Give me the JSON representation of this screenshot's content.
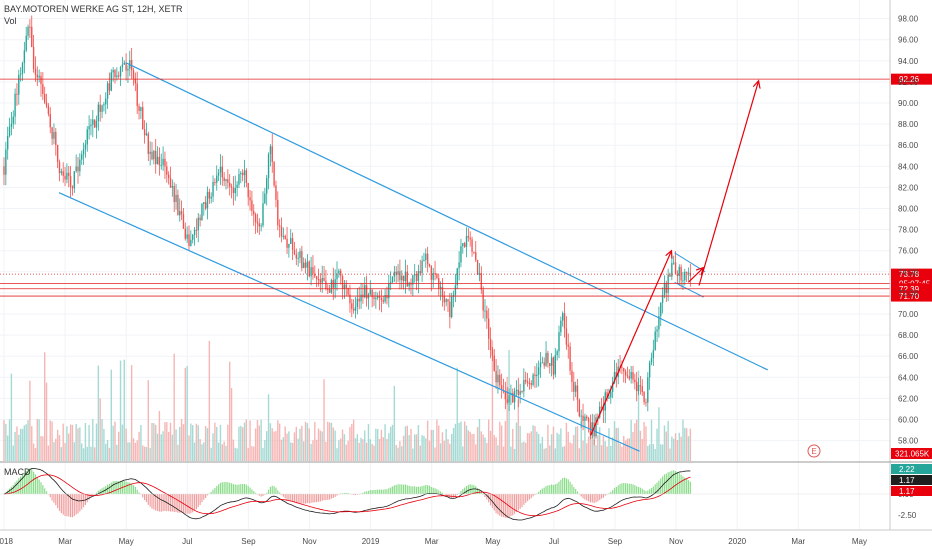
{
  "header": {
    "symbol_line": "BAY.MOTOREN WERKE AG ST, 12H, XETR",
    "vol_label": "Vol"
  },
  "macd_label": "MACD",
  "event_marker": "E",
  "colors": {
    "up": "#26a69a",
    "down": "#ef5350",
    "channel": "#2f9be0",
    "arrow": "#e8000c",
    "hline": "#e02020",
    "macd_line": "#1f1f1f",
    "signal_line": "#e8000c"
  },
  "chart_data": [
    {
      "type": "candlestick",
      "y_axis_ticks": [
        98,
        96,
        94,
        92,
        90,
        88,
        86,
        84,
        82,
        80,
        78,
        76,
        74,
        72,
        70,
        68,
        66,
        64,
        62,
        60,
        58
      ],
      "y_tick_labels": [
        "98.00",
        "96.00",
        "94.00",
        "92.00",
        "90.00",
        "88.00",
        "86.00",
        "84.00",
        "82.00",
        "80.00",
        "78.00",
        "76.00",
        "74.00",
        "72.00",
        "70.00",
        "68.00",
        "66.00",
        "64.00",
        "62.00",
        "60.00",
        "58.00"
      ],
      "x_tick_labels": [
        "2018",
        "Mar",
        "May",
        "Jul",
        "Sep",
        "Nov",
        "2019",
        "Mar",
        "May",
        "Jul",
        "Sep",
        "Nov",
        "2020",
        "Mar",
        "May"
      ],
      "x_tick_months": [
        0,
        2,
        4,
        6,
        8,
        10,
        12,
        14,
        16,
        18,
        20,
        22,
        24,
        26,
        28
      ],
      "price_path": [
        [
          0,
          84
        ],
        [
          0.35,
          90
        ],
        [
          0.8,
          97.5
        ],
        [
          1.0,
          93
        ],
        [
          1.4,
          90
        ],
        [
          1.8,
          84
        ],
        [
          2.2,
          82
        ],
        [
          2.6,
          86
        ],
        [
          3.2,
          90
        ],
        [
          3.6,
          93
        ],
        [
          4.1,
          93.5
        ],
        [
          4.4,
          90
        ],
        [
          4.8,
          85
        ],
        [
          5.3,
          84
        ],
        [
          5.8,
          79
        ],
        [
          6.1,
          76.5
        ],
        [
          6.5,
          80
        ],
        [
          7.1,
          84
        ],
        [
          7.4,
          81.5
        ],
        [
          7.8,
          84
        ],
        [
          8.1,
          80
        ],
        [
          8.4,
          78
        ],
        [
          8.7,
          86
        ],
        [
          9.0,
          78
        ],
        [
          9.5,
          76
        ],
        [
          10.0,
          74
        ],
        [
          10.6,
          72.5
        ],
        [
          11.0,
          74
        ],
        [
          11.4,
          70
        ],
        [
          11.8,
          72
        ],
        [
          12.4,
          71
        ],
        [
          12.8,
          74
        ],
        [
          13.3,
          73
        ],
        [
          13.8,
          75
        ],
        [
          14.3,
          72
        ],
        [
          14.6,
          70
        ],
        [
          15.0,
          77
        ],
        [
          15.4,
          76
        ],
        [
          15.8,
          69
        ],
        [
          16.1,
          64
        ],
        [
          16.5,
          62
        ],
        [
          16.9,
          63
        ],
        [
          17.3,
          64
        ],
        [
          17.6,
          66
        ],
        [
          18.0,
          65
        ],
        [
          18.3,
          70
        ],
        [
          18.6,
          64
        ],
        [
          18.9,
          60
        ],
        [
          19.3,
          59
        ],
        [
          19.7,
          62
        ],
        [
          20.0,
          64
        ],
        [
          20.3,
          65
        ],
        [
          20.7,
          63
        ],
        [
          21.0,
          62
        ],
        [
          21.3,
          68
        ],
        [
          21.6,
          72
        ],
        [
          21.9,
          74.5
        ],
        [
          22.2,
          73.5
        ],
        [
          22.5,
          73.8
        ]
      ],
      "levels": [
        {
          "label": "92.26",
          "value": 92.26,
          "style": "solid",
          "badge": "red"
        },
        {
          "label": "73.78",
          "value": 73.78,
          "style": "dotted",
          "badge": "red"
        },
        {
          "label": "05:07:45",
          "value": 72.9,
          "style": "solid",
          "badge": "red"
        },
        {
          "label": "72.39",
          "value": 72.39,
          "style": "solid",
          "badge": "red"
        },
        {
          "label": "71.70",
          "value": 71.7,
          "style": "solid",
          "badge": "red"
        }
      ],
      "channel": {
        "upper": {
          "start": [
            4.0,
            93.8
          ],
          "end": [
            25.0,
            64.7
          ]
        },
        "lower": {
          "start": [
            1.8,
            81.5
          ],
          "end": [
            20.8,
            57.0
          ]
        }
      },
      "wedge": {
        "top": {
          "start": [
            21.95,
            75.8
          ],
          "end": [
            22.95,
            74.0
          ]
        },
        "bottom": {
          "start": [
            21.95,
            73.0
          ],
          "end": [
            22.9,
            71.6
          ]
        }
      },
      "arrows": [
        {
          "from": [
            19.2,
            58.5
          ],
          "to": [
            21.85,
            76.0
          ]
        },
        {
          "from": [
            22.4,
            73.0
          ],
          "to": [
            22.9,
            74.4
          ]
        },
        {
          "from": [
            22.75,
            72.7
          ],
          "to": [
            24.7,
            92.1
          ]
        }
      ],
      "volume": {
        "last_label": "321.065K"
      }
    },
    {
      "type": "macd",
      "y_axis_ticks": [
        0,
        -2.5
      ],
      "y_tick_labels": [
        "0.00",
        "-2.50"
      ],
      "badges": [
        {
          "label": "2.22",
          "color": "#26a69a"
        },
        {
          "label": "1.17",
          "color": "#1f1f1f"
        },
        {
          "label": "1.17",
          "color": "#e8000c"
        }
      ]
    }
  ]
}
